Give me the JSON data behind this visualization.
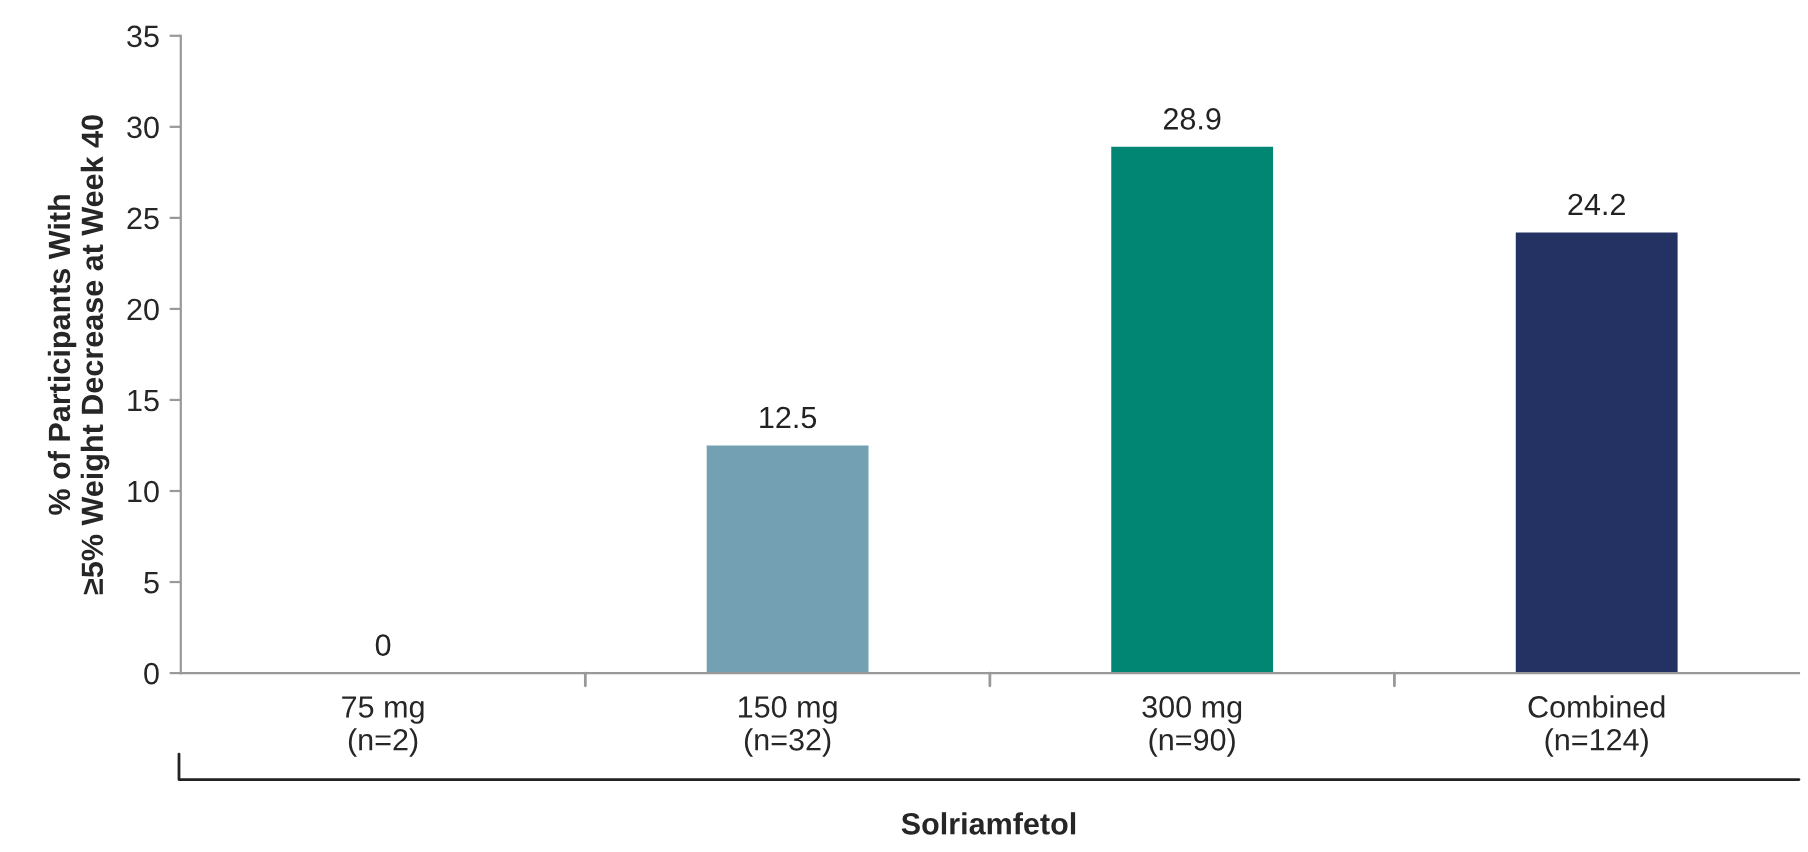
{
  "chart_data": {
    "type": "bar",
    "categories": [
      "75 mg\n(n=2)",
      "150 mg\n(n=32)",
      "300 mg\n(n=90)",
      "Combined\n(n=124)"
    ],
    "values": [
      0,
      12.5,
      28.9,
      24.2
    ],
    "colors": [
      "#74a0b4",
      "#74a0b4",
      "#008673",
      "#243263"
    ],
    "ylim": [
      0,
      35
    ],
    "yticks": [
      0,
      5,
      10,
      15,
      20,
      25,
      30,
      35
    ],
    "ylabel": "% of Participants With\n≥5% Weight Decrease at Week 40",
    "xlabel": "Solriamfetol",
    "data_labels": true,
    "grid": false,
    "legend": false
  }
}
